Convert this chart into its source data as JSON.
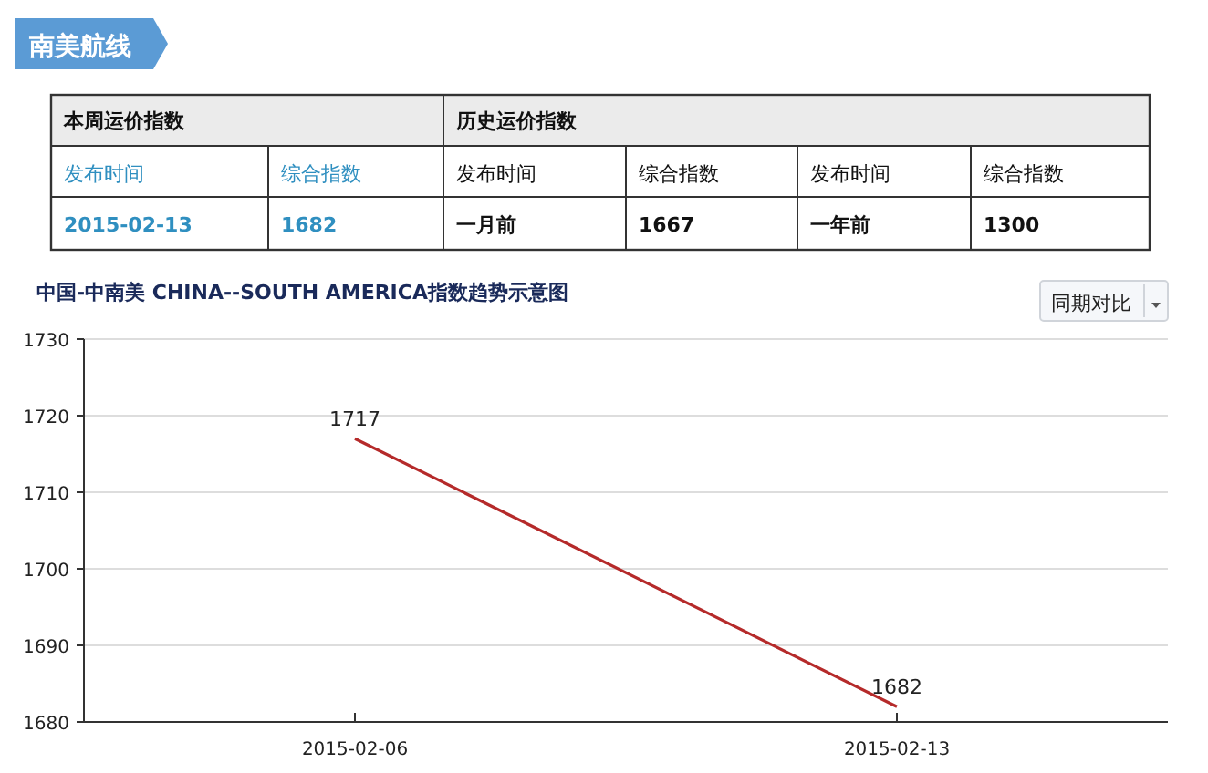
{
  "chart_data": [
    {
      "type": "other",
      "title": "南美航线",
      "annotations": [
        "本周运价指数",
        "历史运价指数",
        "发布时间",
        "综合指数",
        "发布时间",
        "综合指数",
        "发布时间",
        "综合指数",
        "2015-02-13",
        "1682",
        "一月前",
        "1667",
        "一年前",
        "1300"
      ]
    },
    {
      "type": "line",
      "title": "中国-中南美  CHINA--SOUTH AMERICA指数趋势示意图",
      "categories": [
        "2015-02-06",
        "2015-02-13"
      ],
      "series": [
        {
          "color": "#b52a2a",
          "values": [
            1717,
            1682
          ]
        }
      ],
      "ylim": [
        1680,
        1730
      ],
      "yticks": [
        1680,
        1690,
        1700,
        1710,
        1720,
        1730
      ],
      "grid": "y",
      "data_labels": true,
      "annotations": [
        "同期对比"
      ]
    }
  ]
}
